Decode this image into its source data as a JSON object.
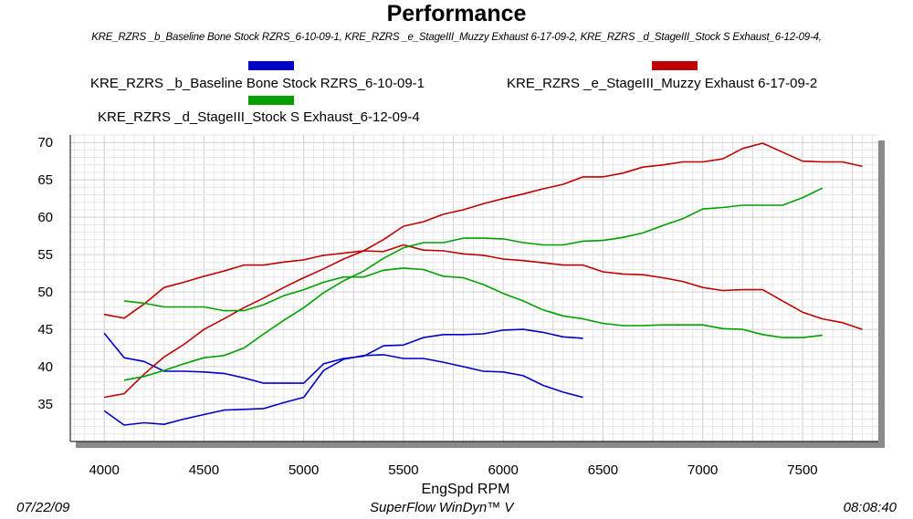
{
  "chart_data": {
    "type": "line",
    "title": "Performance",
    "subtitle": "KRE_RZRS _b_Baseline Bone Stock RZRS_6-10-09-1, KRE_RZRS _e_StageIII_Muzzy Exhaust 6-17-09-2, KRE_RZRS _d_StageIII_Stock S Exhaust_6-12-09-4,",
    "xlabel": "EngSpd  RPM",
    "ylabel": "",
    "xlim": [
      3830,
      7880
    ],
    "ylim": [
      30,
      71
    ],
    "x_ticks": [
      4000,
      4500,
      5000,
      5500,
      6000,
      6500,
      7000,
      7500
    ],
    "y_ticks": [
      35,
      40,
      45,
      50,
      55,
      60,
      65,
      70
    ],
    "grid": true,
    "legend_position": "top",
    "series": [
      {
        "name": "KRE_RZRS _b_Baseline Bone Stock RZRS_6-10-09-1",
        "color": "#0000c8",
        "lines": [
          {
            "x": [
              4000,
              4100,
              4200,
              4300,
              4400,
              4500,
              4600,
              4700,
              4800,
              4900,
              5000,
              5100,
              5200,
              5300,
              5400,
              5500,
              5600,
              5700,
              5800,
              5900,
              6000,
              6100,
              6200,
              6300,
              6400
            ],
            "y": [
              34.1,
              32.2,
              32.5,
              32.3,
              33.0,
              33.6,
              34.2,
              34.3,
              34.4,
              35.2,
              35.9,
              39.5,
              41.0,
              41.5,
              41.6,
              41.1,
              41.1,
              40.6,
              40.0,
              39.4,
              39.3,
              38.8,
              37.5,
              36.6,
              35.9
            ]
          },
          {
            "x": [
              4000,
              4100,
              4200,
              4300,
              4400,
              4500,
              4600,
              4700,
              4800,
              4900,
              5000,
              5100,
              5200,
              5300,
              5400,
              5500,
              5600,
              5700,
              5800,
              5900,
              6000,
              6100,
              6200,
              6300,
              6400
            ],
            "y": [
              44.5,
              41.2,
              40.7,
              39.4,
              39.4,
              39.3,
              39.1,
              38.5,
              37.8,
              37.8,
              37.8,
              40.4,
              41.1,
              41.4,
              42.8,
              42.9,
              43.9,
              44.3,
              44.3,
              44.4,
              44.9,
              45.0,
              44.6,
              44.0,
              43.8
            ]
          }
        ]
      },
      {
        "name": "KRE_RZRS _e_StageIII_Muzzy Exhaust 6-17-09-2",
        "color": "#c00000",
        "lines": [
          {
            "x": [
              4000,
              4100,
              4200,
              4300,
              4400,
              4500,
              4600,
              4700,
              4800,
              4900,
              5000,
              5100,
              5200,
              5300,
              5400,
              5500,
              5600,
              5700,
              5800,
              5900,
              6000,
              6100,
              6200,
              6300,
              6400,
              6500,
              6600,
              6700,
              6800,
              6900,
              7000,
              7100,
              7200,
              7300,
              7400,
              7500,
              7600,
              7700,
              7800
            ],
            "y": [
              35.9,
              36.4,
              39.0,
              41.3,
              43.0,
              45.0,
              46.4,
              47.9,
              49.2,
              50.6,
              51.9,
              53.1,
              54.4,
              55.5,
              57.0,
              58.8,
              59.4,
              60.4,
              61.0,
              61.8,
              62.5,
              63.1,
              63.8,
              64.4,
              65.4,
              65.4,
              65.9,
              66.7,
              67.0,
              67.4,
              67.4,
              67.8,
              69.2,
              69.9,
              68.7,
              67.5,
              67.4,
              67.4,
              66.8
            ]
          },
          {
            "x": [
              4000,
              4100,
              4200,
              4300,
              4400,
              4500,
              4600,
              4700,
              4800,
              4900,
              5000,
              5100,
              5200,
              5300,
              5400,
              5500,
              5600,
              5700,
              5800,
              5900,
              6000,
              6100,
              6200,
              6300,
              6400,
              6500,
              6600,
              6700,
              6800,
              6900,
              7000,
              7100,
              7200,
              7300,
              7400,
              7500,
              7600,
              7700,
              7800
            ],
            "y": [
              47.0,
              46.5,
              48.4,
              50.6,
              51.3,
              52.1,
              52.8,
              53.6,
              53.6,
              54.0,
              54.3,
              54.9,
              55.2,
              55.5,
              55.4,
              56.3,
              55.6,
              55.5,
              55.1,
              54.9,
              54.4,
              54.2,
              53.9,
              53.6,
              53.6,
              52.7,
              52.4,
              52.3,
              51.9,
              51.4,
              50.6,
              50.2,
              50.3,
              50.3,
              48.8,
              47.3,
              46.4,
              45.9,
              45.0
            ]
          }
        ]
      },
      {
        "name": "KRE_RZRS _d_StageIII_Stock S Exhaust_6-12-09-4",
        "color": "#00a000",
        "lines": [
          {
            "x": [
              4100,
              4200,
              4300,
              4400,
              4500,
              4600,
              4700,
              4800,
              4900,
              5000,
              5100,
              5200,
              5300,
              5400,
              5500,
              5600,
              5700,
              5800,
              5900,
              6000,
              6100,
              6200,
              6300,
              6400,
              6500,
              6600,
              6700,
              6800,
              6900,
              7000,
              7100,
              7200,
              7300,
              7400,
              7500,
              7600
            ],
            "y": [
              38.2,
              38.7,
              39.5,
              40.4,
              41.2,
              41.5,
              42.5,
              44.4,
              46.2,
              47.9,
              49.9,
              51.5,
              52.8,
              54.5,
              55.9,
              56.6,
              56.6,
              57.2,
              57.2,
              57.1,
              56.6,
              56.3,
              56.3,
              56.8,
              56.9,
              57.3,
              57.9,
              58.9,
              59.8,
              61.1,
              61.3,
              61.6,
              61.6,
              61.6,
              62.6,
              63.9
            ]
          },
          {
            "x": [
              4100,
              4200,
              4300,
              4400,
              4500,
              4600,
              4700,
              4800,
              4900,
              5000,
              5100,
              5200,
              5300,
              5400,
              5500,
              5600,
              5700,
              5800,
              5900,
              6000,
              6100,
              6200,
              6300,
              6400,
              6500,
              6600,
              6700,
              6800,
              6900,
              7000,
              7100,
              7200,
              7300,
              7400,
              7500,
              7600
            ],
            "y": [
              48.8,
              48.5,
              48.0,
              48.0,
              48.0,
              47.5,
              47.5,
              48.3,
              49.5,
              50.3,
              51.3,
              52.0,
              52.0,
              52.9,
              53.2,
              53.0,
              52.1,
              51.9,
              51.0,
              49.8,
              48.8,
              47.6,
              46.8,
              46.4,
              45.8,
              45.5,
              45.5,
              45.6,
              45.6,
              45.6,
              45.1,
              45.0,
              44.3,
              43.9,
              43.9,
              44.2
            ]
          }
        ]
      }
    ]
  },
  "footer": {
    "date": "07/22/09",
    "software": "SuperFlow WinDyn™ V",
    "time": "08:08:40"
  }
}
